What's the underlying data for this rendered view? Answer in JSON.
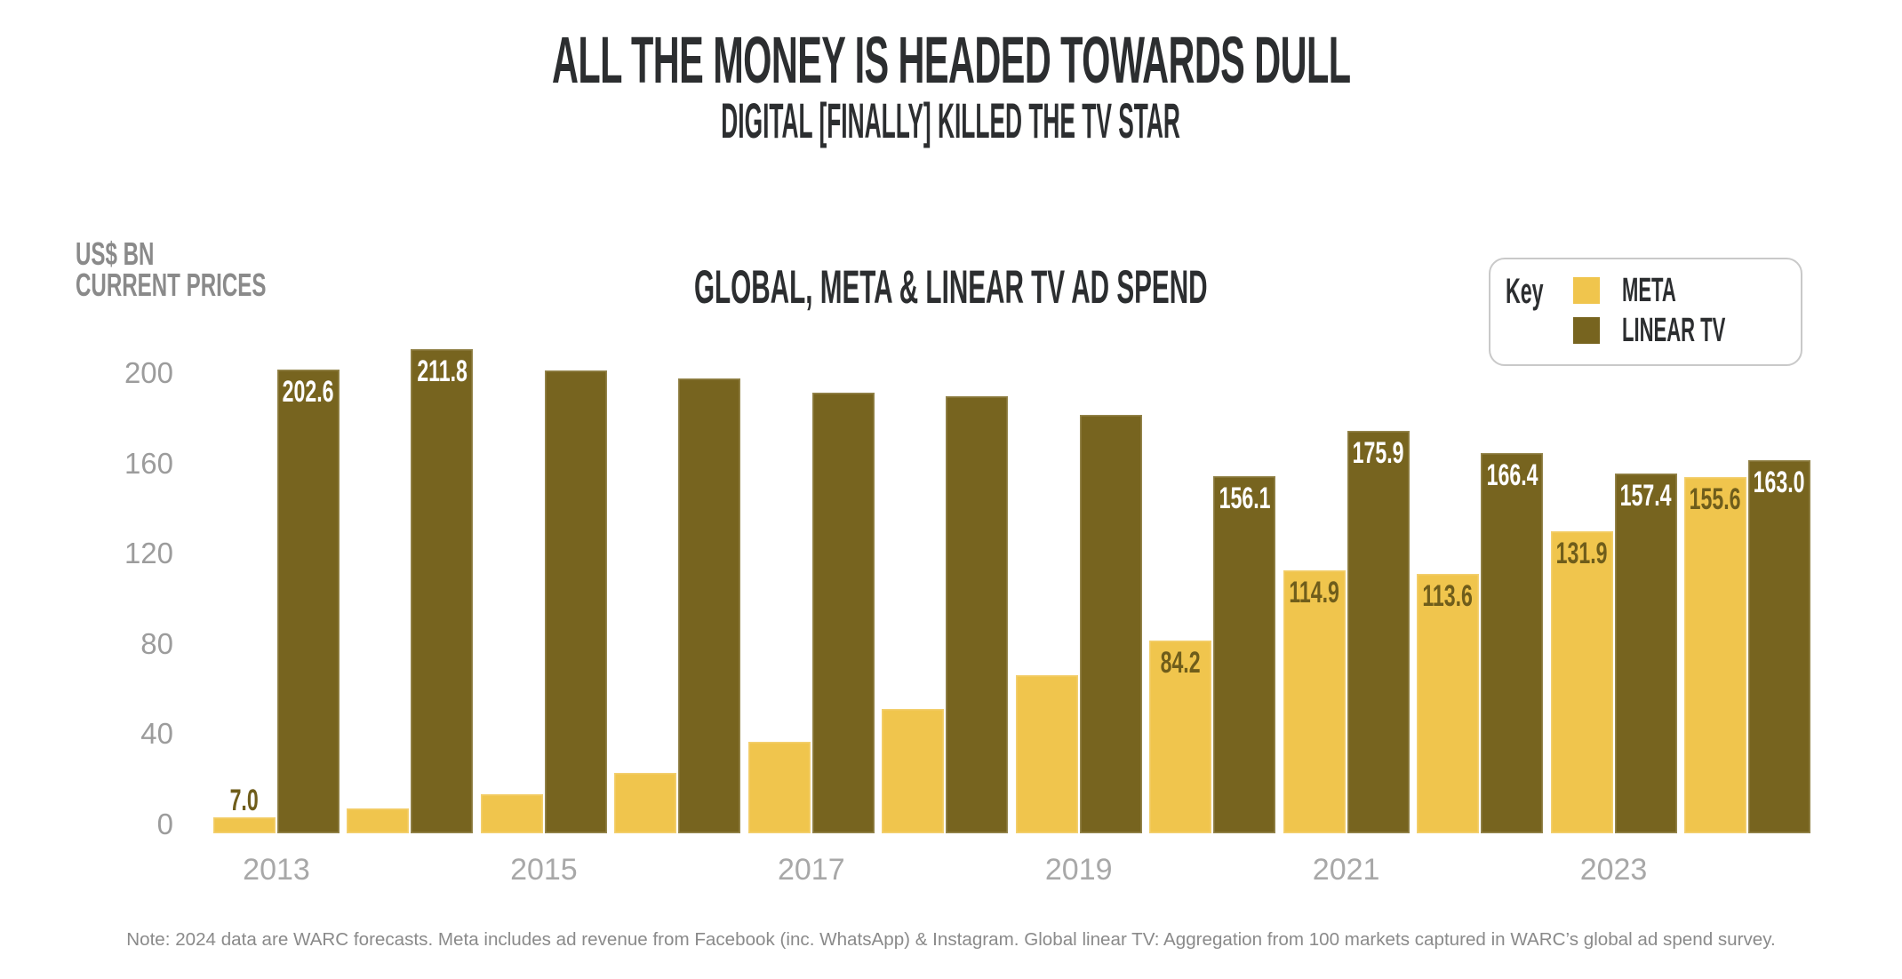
{
  "header": {
    "title": "ALL THE MONEY IS HEADED TOWARDS DULL",
    "subtitle": "DIGITAL [FINALLY] KILLED THE TV STAR"
  },
  "chart": {
    "heading": "GLOBAL, META & LINEAR TV AD SPEND",
    "axis_title": {
      "line1": "US$ BN",
      "line2": "CURRENT PRICES"
    },
    "legend": {
      "title": "Key",
      "items": [
        {
          "label": "META"
        },
        {
          "label": "LINEAR TV"
        }
      ]
    }
  },
  "chart_data": {
    "type": "bar",
    "title": "GLOBAL, META & LINEAR TV AD SPEND",
    "ylabel": "US$ BN CURRENT PRICES",
    "categories": [
      "2013",
      "2014",
      "2015",
      "2016",
      "2017",
      "2018",
      "2019",
      "2020",
      "2021",
      "2022",
      "2023",
      "2024"
    ],
    "x_tick_labels": [
      "2013",
      "2015",
      "2017",
      "2019",
      "2021",
      "2023"
    ],
    "y_ticks": [
      0,
      40,
      80,
      120,
      160,
      200
    ],
    "ylim": [
      0,
      220
    ],
    "grid": false,
    "legend_position": "top-right",
    "series": [
      {
        "name": "META",
        "color": "#f0c54d",
        "label_color": "#6f5d1b",
        "values": [
          7.0,
          11.0,
          17.0,
          26.5,
          40.0,
          54.5,
          69.0,
          84.2,
          114.9,
          113.6,
          131.9,
          155.6
        ],
        "printed_labels": [
          "7.0",
          null,
          null,
          null,
          null,
          null,
          null,
          "84.2",
          "114.9",
          "113.6",
          "131.9",
          "155.6"
        ]
      },
      {
        "name": "LINEAR TV",
        "color": "#77641f",
        "label_color": "#ffffff",
        "values": [
          202.6,
          211.8,
          202.3,
          198.8,
          192.6,
          191.0,
          183.0,
          156.1,
          175.9,
          166.4,
          157.4,
          163.0
        ],
        "printed_labels": [
          "202.6",
          "211.8",
          null,
          null,
          null,
          null,
          null,
          "156.1",
          "175.9",
          "166.4",
          "157.4",
          "163.0"
        ]
      }
    ]
  },
  "footer": {
    "note": "Note: 2024 data are WARC forecasts. Meta includes ad revenue from Facebook (inc. WhatsApp) & Instagram. Global linear TV: Aggregation from 100 markets captured in WARC’s global ad spend survey."
  }
}
